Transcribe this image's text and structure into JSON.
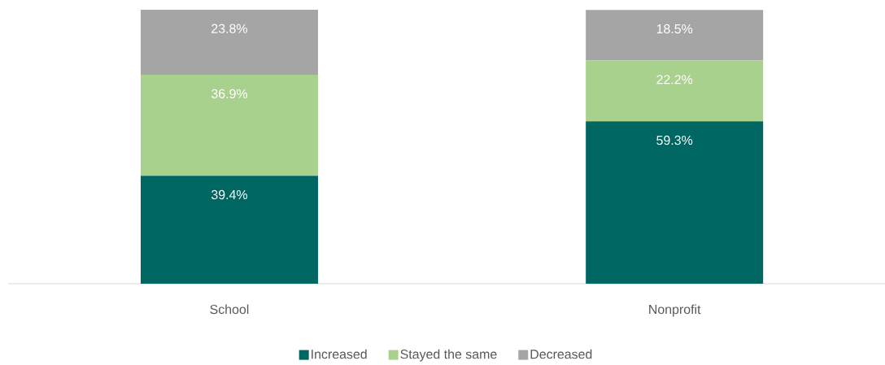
{
  "chart_data": {
    "type": "bar",
    "stacked": true,
    "categories": [
      "School",
      "Nonprofit"
    ],
    "series": [
      {
        "name": "Increased",
        "color": "#006661",
        "values": [
          39.4,
          59.3
        ],
        "value_labels": [
          "39.4%",
          "59.3%"
        ]
      },
      {
        "name": "Stayed the same",
        "color": "#a9d18e",
        "values": [
          36.9,
          22.2
        ],
        "value_labels": [
          "36.9%",
          "22.2%"
        ]
      },
      {
        "name": "Decreased",
        "color": "#a5a5a5",
        "values": [
          23.8,
          18.5
        ],
        "value_labels": [
          "23.8%",
          "18.5%"
        ]
      }
    ],
    "legend": "bottom",
    "tick_labels": "x"
  }
}
